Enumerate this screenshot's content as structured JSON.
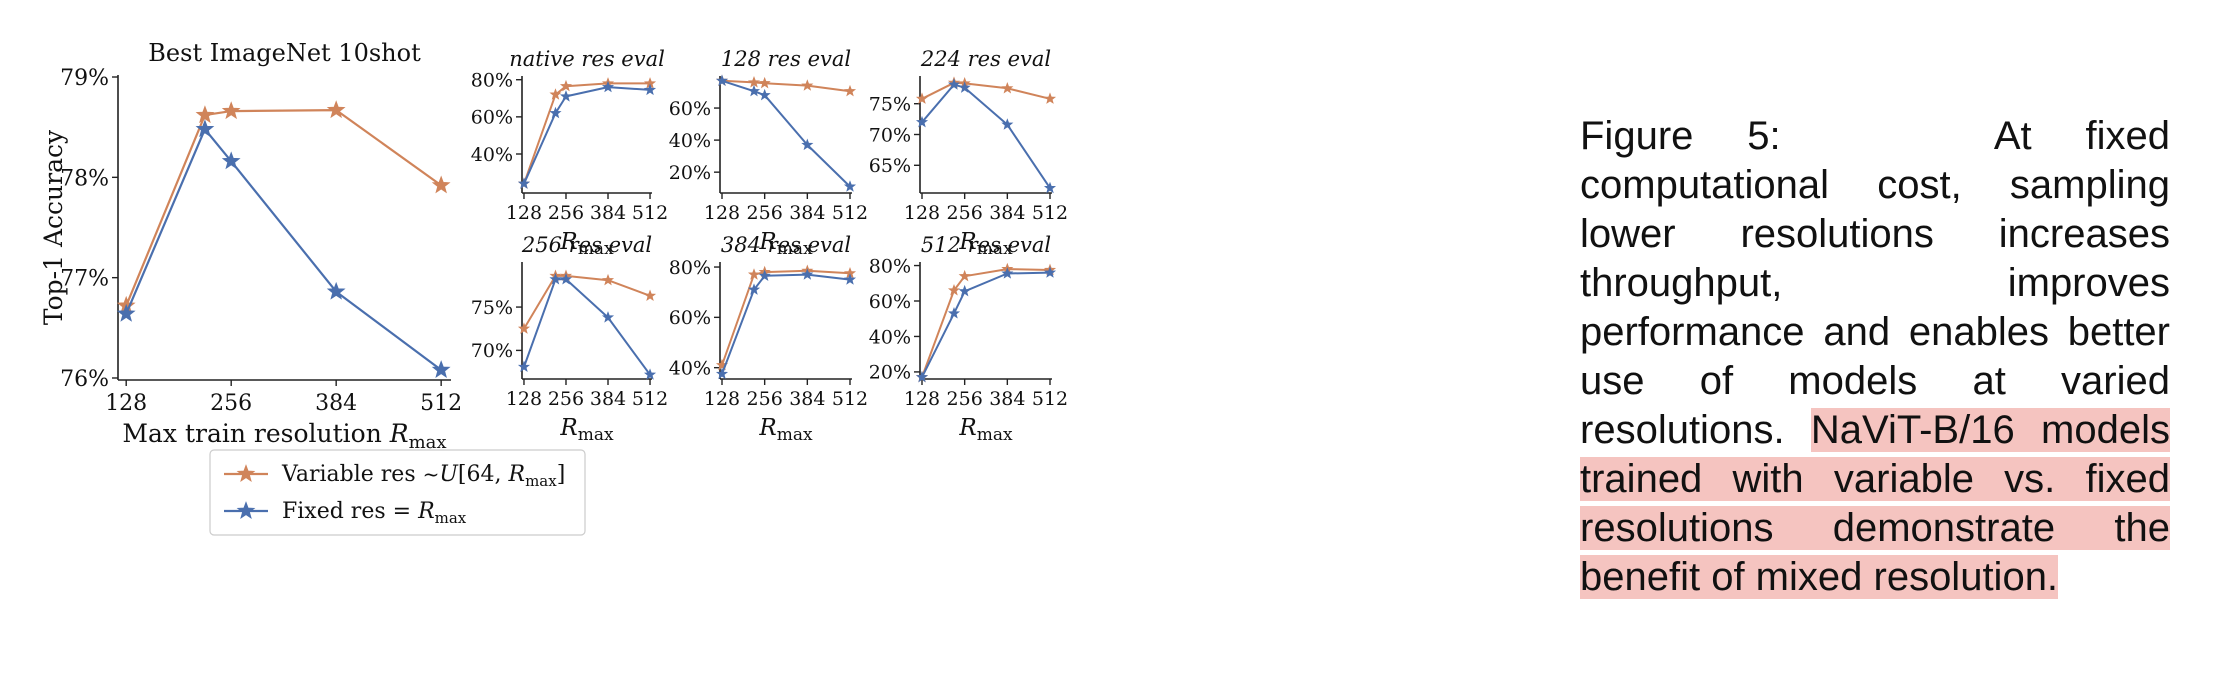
{
  "chart_data": [
    {
      "type": "line",
      "title": "Best ImageNet 10shot",
      "xlabel": "Max train resolution R_max",
      "ylabel": "Top-1 Accuracy",
      "ytick_labels": [
        "76%",
        "77%",
        "78%",
        "79%"
      ],
      "ytick_values": [
        76,
        77,
        78,
        79
      ],
      "xtick_labels": [
        "128",
        "256",
        "384",
        "512"
      ],
      "xtick_values": [
        128,
        256,
        384,
        512
      ],
      "xlim": [
        118,
        524
      ],
      "ylim": [
        75.98,
        79.02
      ],
      "legend": {
        "position": "lower-left",
        "entries": [
          "Variable res ~U[64, R_max]",
          "Fixed res = R_max"
        ]
      },
      "series": [
        {
          "name": "Variable res ~U[64, R_max]",
          "color": "#d0845a",
          "x": [
            128,
            224,
            256,
            384,
            512
          ],
          "y": [
            76.72,
            78.62,
            78.66,
            78.67,
            77.92
          ]
        },
        {
          "name": "Fixed res = R_max",
          "color": "#4a6fae",
          "x": [
            128,
            224,
            256,
            384,
            512
          ],
          "y": [
            76.64,
            78.48,
            78.16,
            76.86,
            76.08
          ]
        }
      ]
    },
    {
      "type": "line",
      "title": "native res eval",
      "xlabel": "R_max",
      "ytick_labels": [
        "40%",
        "60%",
        "80%"
      ],
      "ytick_values": [
        40,
        60,
        80
      ],
      "xtick_labels": [
        "128",
        "256",
        "384",
        "512"
      ],
      "xtick_values": [
        128,
        256,
        384,
        512
      ],
      "ylim": [
        19,
        82
      ],
      "series": [
        {
          "name": "Variable res ~U[64, R_max]",
          "color": "#d0845a",
          "x": [
            128,
            224,
            256,
            384,
            512
          ],
          "y": [
            24,
            72,
            76.5,
            78,
            78
          ]
        },
        {
          "name": "Fixed res = R_max",
          "color": "#4a6fae",
          "x": [
            128,
            224,
            256,
            384,
            512
          ],
          "y": [
            24,
            62,
            71,
            76,
            74.5
          ]
        }
      ]
    },
    {
      "type": "line",
      "title": "128 res eval",
      "xlabel": "R_max",
      "ytick_labels": [
        "20%",
        "40%",
        "60%"
      ],
      "ytick_values": [
        20,
        40,
        60
      ],
      "xtick_labels": [
        "128",
        "256",
        "384",
        "512"
      ],
      "xtick_values": [
        128,
        256,
        384,
        512
      ],
      "ylim": [
        7,
        80
      ],
      "series": [
        {
          "name": "Variable res ~U[64, R_max]",
          "color": "#d0845a",
          "x": [
            128,
            224,
            256,
            384,
            512
          ],
          "y": [
            77,
            76,
            75.5,
            74,
            70.5
          ]
        },
        {
          "name": "Fixed res = R_max",
          "color": "#4a6fae",
          "x": [
            128,
            224,
            256,
            384,
            512
          ],
          "y": [
            77,
            70.5,
            68,
            37,
            11
          ]
        }
      ]
    },
    {
      "type": "line",
      "title": "224 res eval",
      "xlabel": "R_max",
      "ytick_labels": [
        "65%",
        "70%",
        "75%"
      ],
      "ytick_values": [
        65,
        70,
        75
      ],
      "xtick_labels": [
        "128",
        "256",
        "384",
        "512"
      ],
      "xtick_values": [
        128,
        256,
        384,
        512
      ],
      "ylim": [
        60.5,
        79.5
      ],
      "series": [
        {
          "name": "Variable res ~U[64, R_max]",
          "color": "#d0845a",
          "x": [
            128,
            224,
            256,
            384,
            512
          ],
          "y": [
            75.8,
            78.4,
            78.3,
            77.5,
            75.8
          ]
        },
        {
          "name": "Fixed res = R_max",
          "color": "#4a6fae",
          "x": [
            128,
            224,
            256,
            384,
            512
          ],
          "y": [
            72,
            78.1,
            77.6,
            71.6,
            61.3
          ]
        }
      ]
    },
    {
      "type": "line",
      "title": "256 res eval",
      "xlabel": "R_max",
      "ytick_labels": [
        "70%",
        "75%"
      ],
      "ytick_values": [
        70,
        75
      ],
      "xtick_labels": [
        "128",
        "256",
        "384",
        "512"
      ],
      "xtick_values": [
        128,
        256,
        384,
        512
      ],
      "ylim": [
        66.7,
        80.2
      ],
      "series": [
        {
          "name": "Variable res ~U[64, R_max]",
          "color": "#d0845a",
          "x": [
            128,
            224,
            256,
            384,
            512
          ],
          "y": [
            72.5,
            78.6,
            78.6,
            78.1,
            76.3
          ]
        },
        {
          "name": "Fixed res = R_max",
          "color": "#4a6fae",
          "x": [
            128,
            224,
            256,
            384,
            512
          ],
          "y": [
            68.1,
            78.2,
            78.2,
            73.8,
            67.2
          ]
        }
      ]
    },
    {
      "type": "line",
      "title": "384 res eval",
      "xlabel": "R_max",
      "ytick_labels": [
        "40%",
        "60%",
        "80%"
      ],
      "ytick_values": [
        40,
        60,
        80
      ],
      "xtick_labels": [
        "128",
        "256",
        "384",
        "512"
      ],
      "xtick_values": [
        128,
        256,
        384,
        512
      ],
      "ylim": [
        35.5,
        82
      ],
      "series": [
        {
          "name": "Variable res ~U[64, R_max]",
          "color": "#d0845a",
          "x": [
            128,
            224,
            256,
            384,
            512
          ],
          "y": [
            41,
            77,
            78,
            78.5,
            77.5
          ]
        },
        {
          "name": "Fixed res = R_max",
          "color": "#4a6fae",
          "x": [
            128,
            224,
            256,
            384,
            512
          ],
          "y": [
            37.5,
            71,
            76.5,
            77,
            75
          ]
        }
      ]
    },
    {
      "type": "line",
      "title": "512 res eval",
      "xlabel": "R_max",
      "ytick_labels": [
        "20%",
        "40%",
        "60%",
        "80%"
      ],
      "ytick_values": [
        20,
        40,
        60,
        80
      ],
      "xtick_labels": [
        "128",
        "256",
        "384",
        "512"
      ],
      "xtick_values": [
        128,
        256,
        384,
        512
      ],
      "ylim": [
        16,
        82
      ],
      "series": [
        {
          "name": "Variable res ~U[64, R_max]",
          "color": "#d0845a",
          "x": [
            128,
            224,
            256,
            384,
            512
          ],
          "y": [
            17,
            66,
            74,
            78,
            77.5
          ]
        },
        {
          "name": "Fixed res = R_max",
          "color": "#4a6fae",
          "x": [
            128,
            224,
            256,
            384,
            512
          ],
          "y": [
            17,
            53,
            65.5,
            75.5,
            76
          ]
        }
      ]
    }
  ],
  "caption": {
    "label": "Figure 5:",
    "text": "At fixed computational cost, sampling lower resolutions increases throughput, improves performance and enables better use of models at varied resolutions.",
    "highlight": "NaViT-B/16 models trained with variable vs. fixed resolutions demonstrate the benefit of mixed resolution."
  }
}
